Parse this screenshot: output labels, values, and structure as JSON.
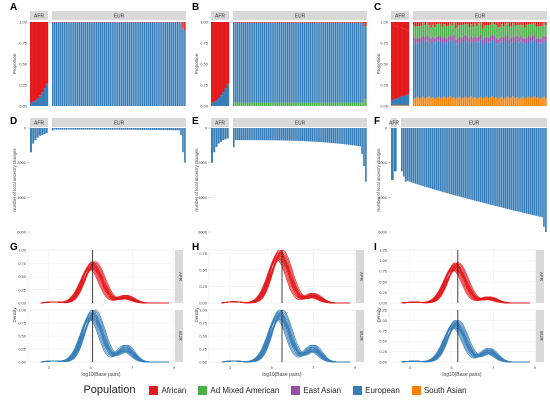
{
  "panel_letters": [
    "A",
    "B",
    "C",
    "D",
    "E",
    "F",
    "G",
    "H",
    "I"
  ],
  "strip": {
    "afr": "AFR",
    "eur": "EUR"
  },
  "legend": {
    "title": "Population",
    "items": [
      {
        "label": "African",
        "color": "#e41a1c"
      },
      {
        "label": "Ad Mixed American",
        "color": "#4daf4a"
      },
      {
        "label": "East Asian",
        "color": "#984ea3"
      },
      {
        "label": "European",
        "color": "#377eb8"
      },
      {
        "label": "South Asian",
        "color": "#ff7f00"
      }
    ]
  },
  "chart_data": [
    {
      "panel": "A",
      "type": "bar",
      "ylabel": "Proportion",
      "xlabel": "",
      "ylim": [
        0,
        1
      ],
      "yticks": [
        "0.00",
        "0.25",
        "0.50",
        "0.75",
        "1.00"
      ],
      "groups": {
        "afr": 8,
        "eur": 70
      },
      "series": [
        {
          "name": "African",
          "eur_level": 0.005,
          "afr_level": 0.85
        },
        {
          "name": "European",
          "eur_level": 0.995,
          "afr_level": 0.15
        }
      ]
    },
    {
      "panel": "B",
      "type": "bar",
      "ylabel": "Proportion",
      "xlabel": "",
      "ylim": [
        0,
        1
      ],
      "yticks": [
        "0.00",
        "0.25",
        "0.50",
        "0.75",
        "1.00"
      ],
      "groups": {
        "afr": 8,
        "eur": 70
      },
      "series": [
        {
          "name": "African",
          "eur_level": 0.01,
          "afr_level": 0.85
        },
        {
          "name": "Ad Mixed American",
          "eur_level": 0.04,
          "afr_level": 0.0
        },
        {
          "name": "European",
          "eur_level": 0.95,
          "afr_level": 0.15
        }
      ]
    },
    {
      "panel": "C",
      "type": "bar",
      "ylabel": "Proportion",
      "xlabel": "",
      "ylim": [
        0,
        1
      ],
      "yticks": [
        "0.00",
        "0.25",
        "0.50",
        "0.75",
        "1.00"
      ],
      "groups": {
        "afr": 8,
        "eur": 70
      },
      "series": [
        {
          "name": "South Asian",
          "eur_level": 0.1
        },
        {
          "name": "European",
          "eur_level": 0.7
        },
        {
          "name": "East Asian",
          "eur_level": 0.06
        },
        {
          "name": "Ad Mixed American",
          "eur_level": 0.12
        },
        {
          "name": "African",
          "eur_level": 0.02
        }
      ]
    },
    {
      "panel": "D",
      "type": "bar",
      "ylabel": "Number of local ancestry changes",
      "xlabel": "",
      "ylim": [
        0,
        6000
      ],
      "yticks": [
        "0",
        "2000",
        "4000",
        "6000"
      ],
      "groups": {
        "afr": 8,
        "eur": 70
      },
      "afr_values": [
        1400,
        900,
        700,
        550,
        450,
        400,
        350,
        300
      ],
      "eur_typical": 90,
      "eur_tail": [
        400,
        1400,
        2000
      ]
    },
    {
      "panel": "E",
      "type": "bar",
      "ylabel": "Number of local ancestry changes",
      "xlabel": "",
      "ylim": [
        0,
        6000
      ],
      "yticks": [
        "0",
        "2000",
        "4000",
        "6000"
      ],
      "groups": {
        "afr": 8,
        "eur": 70
      },
      "afr_values": [
        2000,
        1400,
        1100,
        900,
        800,
        700,
        650,
        600
      ],
      "eur_typical": 700,
      "eur_tail": [
        1500,
        2200,
        3100
      ]
    },
    {
      "panel": "F",
      "type": "bar",
      "ylabel": "Number of local ancestry changes",
      "xlabel": "",
      "ylim": [
        0,
        6000
      ],
      "yticks": [
        "0",
        "2000",
        "4000",
        "6000"
      ],
      "groups": {
        "afr": 2,
        "eur": 76
      },
      "afr_values": [
        3000,
        2500
      ],
      "eur_start": 2900,
      "eur_end": 5200,
      "eur_tail": [
        5700,
        6000
      ]
    },
    {
      "panel": "G",
      "type": "line",
      "ylabel": "Density",
      "xlabel": "log10(Base pairs)",
      "xlim": [
        2,
        9
      ],
      "xticks": [
        "3",
        "5",
        "7",
        "9"
      ],
      "rows": [
        {
          "strip": "AFR",
          "color": "#e41a1c",
          "ylim": [
            0,
            1
          ],
          "yticks": [
            "0.00",
            "0.25",
            "0.50",
            "0.75",
            "1.00"
          ],
          "peak_x": 5.1,
          "peak_y": 0.78
        },
        {
          "strip": "EUR",
          "color": "#377eb8",
          "ylim": [
            0,
            1
          ],
          "yticks": [
            "0.00",
            "0.25",
            "0.50",
            "0.75",
            "1.00"
          ],
          "peak_x": 5.1,
          "peak_y": 1.0
        }
      ],
      "vline_x": 5.1
    },
    {
      "panel": "H",
      "type": "line",
      "ylabel": "Density",
      "xlabel": "log10(Base pairs)",
      "xlim": [
        2,
        9
      ],
      "xticks": [
        "3",
        "5",
        "7",
        "9"
      ],
      "rows": [
        {
          "strip": "AFR",
          "color": "#e41a1c",
          "ylim": [
            0,
            0.8
          ],
          "yticks": [
            "0.00",
            "0.25",
            "0.50",
            "0.75"
          ],
          "peak_x": 5.4,
          "peak_y": 0.8
        },
        {
          "strip": "EUR",
          "color": "#377eb8",
          "ylim": [
            0,
            1
          ],
          "yticks": [
            "0.00",
            "0.25",
            "0.50",
            "0.75",
            "1.00"
          ],
          "peak_x": 5.4,
          "peak_y": 1.0
        }
      ],
      "vline_x": 5.5
    },
    {
      "panel": "I",
      "type": "line",
      "ylabel": "Density",
      "xlabel": "log10(Base pairs)",
      "xlim": [
        2,
        9
      ],
      "xticks": [
        "3",
        "5",
        "7",
        "9"
      ],
      "rows": [
        {
          "strip": "AFR",
          "color": "#e41a1c",
          "ylim": [
            0,
            1.25
          ],
          "yticks": [
            "0.00",
            "0.25",
            "0.50",
            "0.75",
            "1.00",
            "1.25"
          ],
          "peak_x": 5.2,
          "peak_y": 0.95
        },
        {
          "strip": "EUR",
          "color": "#377eb8",
          "ylim": [
            0,
            1.25
          ],
          "yticks": [
            "0.00",
            "0.25",
            "0.50",
            "0.75",
            "1.00",
            "1.25"
          ],
          "peak_x": 5.2,
          "peak_y": 1.0
        }
      ],
      "vline_x": 5.3
    }
  ]
}
